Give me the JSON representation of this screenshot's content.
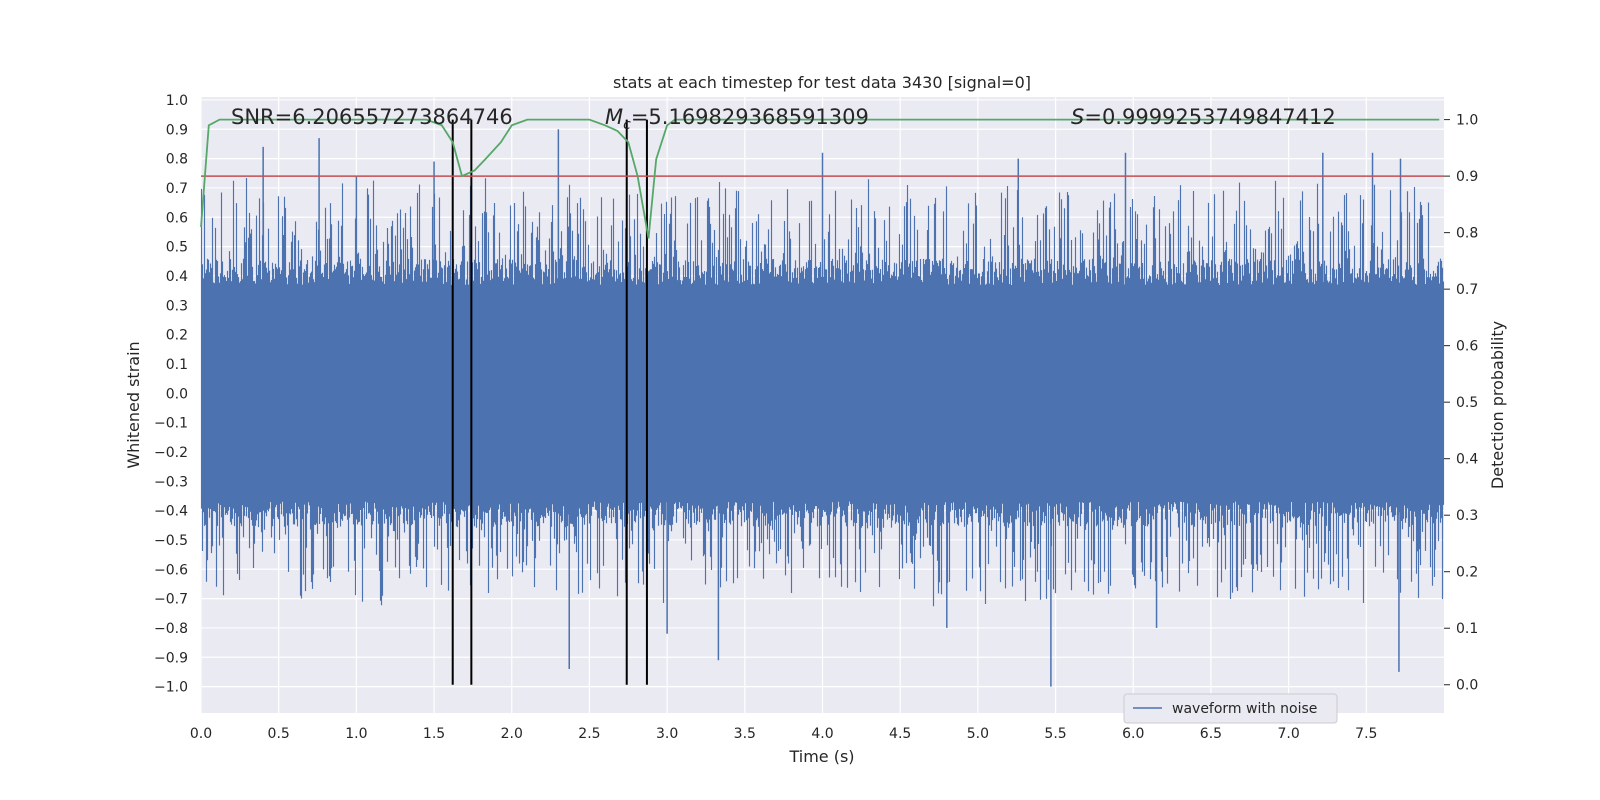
{
  "chart_data": {
    "type": "line",
    "title": "stats at each timestep for test data 3430 [signal=0]",
    "xlabel": "Time (s)",
    "ylabel": "Whitened strain",
    "y2label": "Detection probability",
    "xlim": [
      0.0,
      8.0
    ],
    "ylim": [
      -1.09,
      1.01
    ],
    "y2lim": [
      -0.05,
      1.04
    ],
    "xticks": [
      "0.0",
      "0.5",
      "1.0",
      "1.5",
      "2.0",
      "2.5",
      "3.0",
      "3.5",
      "4.0",
      "4.5",
      "5.0",
      "5.5",
      "6.0",
      "6.5",
      "7.0",
      "7.5"
    ],
    "yticks": [
      "1.0",
      "0.9",
      "0.8",
      "0.7",
      "0.6",
      "0.5",
      "0.4",
      "0.3",
      "0.2",
      "0.1",
      "0.0",
      "-0.1",
      "-0.2",
      "-0.3",
      "-0.4",
      "-0.5",
      "-0.6",
      "-0.7",
      "-0.8",
      "-0.9",
      "-1.0"
    ],
    "y2ticks": [
      "1.0",
      "0.9",
      "0.8",
      "0.7",
      "0.6",
      "0.5",
      "0.4",
      "0.3",
      "0.2",
      "0.1",
      "0.0"
    ],
    "grid": true,
    "legend": {
      "position": "bottom-right",
      "entries": [
        "waveform with noise"
      ]
    },
    "annotations": {
      "snr": "SNR=6.206557273864746",
      "mc_symbol": "M",
      "mc_sub": "c",
      "mc_value": "=5.169829368591309",
      "s_symbol": "S",
      "s_value": "=0.9999253749847412"
    },
    "threshold": 0.9,
    "vertical_lines_s": [
      1.62,
      1.74,
      2.74,
      2.87
    ],
    "waveform": {
      "name": "waveform with noise",
      "envelope_min": -0.45,
      "envelope_max": 0.45,
      "peak_spikes": [
        {
          "t": 0.4,
          "v": 0.84
        },
        {
          "t": 0.76,
          "v": 0.87
        },
        {
          "t": 1.0,
          "v": 0.74
        },
        {
          "t": 1.5,
          "v": 0.79
        },
        {
          "t": 2.3,
          "v": 0.9
        },
        {
          "t": 4.0,
          "v": 0.82
        },
        {
          "t": 5.26,
          "v": 0.8
        },
        {
          "t": 5.95,
          "v": 0.82
        },
        {
          "t": 7.22,
          "v": 0.82
        },
        {
          "t": 7.54,
          "v": 0.82
        },
        {
          "t": 7.72,
          "v": 0.8
        }
      ],
      "trough_spikes": [
        {
          "t": 2.37,
          "v": -0.94
        },
        {
          "t": 3.33,
          "v": -0.91
        },
        {
          "t": 5.47,
          "v": -1.0
        },
        {
          "t": 7.71,
          "v": -0.95
        },
        {
          "t": 4.8,
          "v": -0.8
        },
        {
          "t": 3.0,
          "v": -0.82
        },
        {
          "t": 6.15,
          "v": -0.8
        }
      ]
    },
    "detection_probability": {
      "x": [
        0.0,
        0.05,
        0.12,
        0.3,
        0.6,
        1.0,
        1.3,
        1.45,
        1.55,
        1.62,
        1.68,
        1.76,
        1.83,
        1.93,
        2.0,
        2.1,
        2.3,
        2.5,
        2.6,
        2.68,
        2.75,
        2.81,
        2.88,
        2.93,
        3.0,
        3.05,
        3.2,
        4.0,
        5.0,
        6.0,
        7.0,
        7.97
      ],
      "y": [
        0.81,
        0.99,
        1.0,
        1.0,
        1.0,
        1.0,
        1.0,
        1.0,
        0.99,
        0.96,
        0.9,
        0.91,
        0.93,
        0.96,
        0.99,
        1.0,
        1.0,
        1.0,
        0.99,
        0.98,
        0.96,
        0.9,
        0.79,
        0.93,
        0.99,
        1.0,
        1.0,
        1.0,
        1.0,
        1.0,
        1.0,
        1.0
      ]
    },
    "colors": {
      "waveform": "#4c72b0",
      "probability": "#55a868",
      "threshold": "#c44e52",
      "vlines": "#000000",
      "plot_bg": "#eaeaf2",
      "grid": "#ffffff"
    }
  }
}
